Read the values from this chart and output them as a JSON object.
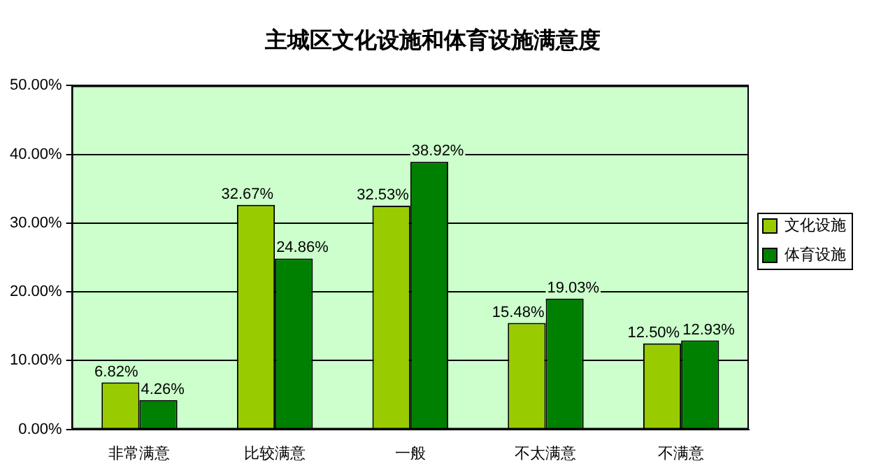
{
  "chart_data": {
    "type": "bar",
    "title": "主城区文化设施和体育设施满意度",
    "categories": [
      "非常满意",
      "比较满意",
      "一般",
      "不太满意",
      "不满意"
    ],
    "series": [
      {
        "name": "文化设施",
        "color": "#99cc00",
        "values": [
          6.82,
          32.67,
          32.53,
          15.48,
          12.5
        ],
        "value_labels": [
          "6.82%",
          "32.67%",
          "32.53%",
          "15.48%",
          "12.50%"
        ]
      },
      {
        "name": "体育设施",
        "color": "#008000",
        "values": [
          4.26,
          24.86,
          38.92,
          19.03,
          12.93
        ],
        "value_labels": [
          "4.26%",
          "24.86%",
          "38.92%",
          "19.03%",
          "12.93%"
        ]
      }
    ],
    "ylim": [
      0,
      50
    ],
    "yticks": [
      {
        "value": 0,
        "label": "0.00%"
      },
      {
        "value": 10,
        "label": "10.00%"
      },
      {
        "value": 20,
        "label": "20.00%"
      },
      {
        "value": 30,
        "label": "30.00%"
      },
      {
        "value": 40,
        "label": "40.00%"
      },
      {
        "value": 50,
        "label": "50.00%"
      }
    ],
    "grid": "y",
    "legend": "right"
  }
}
